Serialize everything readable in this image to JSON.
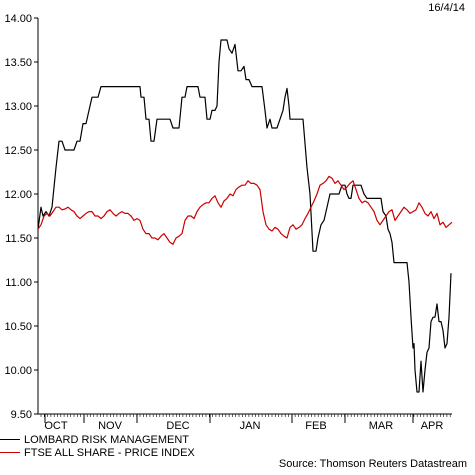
{
  "header": {
    "date": "16/4/14"
  },
  "footer": {
    "source": "Source: Thomson Reuters Datastream"
  },
  "chart_data": {
    "type": "line",
    "title": "",
    "xlabel": "",
    "ylabel": "",
    "ylim": [
      9.5,
      14.0
    ],
    "y_ticks": [
      "14.00",
      "13.50",
      "13.00",
      "12.50",
      "12.00",
      "11.50",
      "11.00",
      "10.50",
      "10.00",
      "9.50"
    ],
    "month_labels": [
      "OCT",
      "NOV",
      "DEC",
      "JAN",
      "FEB",
      "MAR",
      "APR"
    ],
    "month_label_x": [
      56,
      110,
      178,
      250,
      316,
      381,
      432
    ],
    "x_range": [
      38,
      452
    ],
    "grid": false,
    "legend_position": "bottom-left",
    "series": [
      {
        "name": "LOMBARD RISK MANAGEMENT",
        "color": "#000000",
        "points": [
          [
            38,
            11.6
          ],
          [
            41,
            11.85
          ],
          [
            43,
            11.75
          ],
          [
            46,
            11.8
          ],
          [
            49,
            11.75
          ],
          [
            52,
            11.85
          ],
          [
            56,
            12.3
          ],
          [
            59,
            12.6
          ],
          [
            62,
            12.6
          ],
          [
            65,
            12.5
          ],
          [
            68,
            12.5
          ],
          [
            71,
            12.5
          ],
          [
            74,
            12.5
          ],
          [
            77,
            12.6
          ],
          [
            80,
            12.6
          ],
          [
            83,
            12.8
          ],
          [
            86,
            12.8
          ],
          [
            89,
            12.95
          ],
          [
            92,
            13.1
          ],
          [
            95,
            13.1
          ],
          [
            98,
            13.1
          ],
          [
            101,
            13.22
          ],
          [
            104,
            13.22
          ],
          [
            110,
            13.22
          ],
          [
            120,
            13.22
          ],
          [
            130,
            13.22
          ],
          [
            140,
            13.22
          ],
          [
            141,
            13.1
          ],
          [
            144,
            13.1
          ],
          [
            146,
            12.85
          ],
          [
            149,
            12.85
          ],
          [
            151,
            12.6
          ],
          [
            154,
            12.6
          ],
          [
            157,
            12.85
          ],
          [
            162,
            12.85
          ],
          [
            167,
            12.85
          ],
          [
            170,
            12.85
          ],
          [
            173,
            12.75
          ],
          [
            176,
            12.75
          ],
          [
            179,
            12.75
          ],
          [
            182,
            13.1
          ],
          [
            185,
            13.1
          ],
          [
            187,
            13.22
          ],
          [
            190,
            13.22
          ],
          [
            195,
            13.22
          ],
          [
            198,
            13.22
          ],
          [
            200,
            13.1
          ],
          [
            203,
            13.1
          ],
          [
            205,
            13.1
          ],
          [
            207,
            12.85
          ],
          [
            210,
            12.85
          ],
          [
            212,
            12.95
          ],
          [
            215,
            12.95
          ],
          [
            217,
            13.0
          ],
          [
            219,
            13.5
          ],
          [
            221,
            13.75
          ],
          [
            224,
            13.75
          ],
          [
            227,
            13.75
          ],
          [
            229,
            13.65
          ],
          [
            232,
            13.6
          ],
          [
            235,
            13.7
          ],
          [
            238,
            13.4
          ],
          [
            241,
            13.4
          ],
          [
            244,
            13.45
          ],
          [
            246,
            13.3
          ],
          [
            249,
            13.3
          ],
          [
            252,
            13.22
          ],
          [
            255,
            13.22
          ],
          [
            258,
            13.22
          ],
          [
            262,
            13.22
          ],
          [
            265,
            12.95
          ],
          [
            267,
            12.75
          ],
          [
            270,
            12.85
          ],
          [
            272,
            12.75
          ],
          [
            275,
            12.75
          ],
          [
            277,
            12.75
          ],
          [
            280,
            12.85
          ],
          [
            283,
            12.95
          ],
          [
            285,
            13.1
          ],
          [
            287,
            13.2
          ],
          [
            289,
            13.0
          ],
          [
            290,
            12.85
          ],
          [
            293,
            12.85
          ],
          [
            296,
            12.85
          ],
          [
            299,
            12.85
          ],
          [
            303,
            12.85
          ],
          [
            307,
            12.3
          ],
          [
            310,
            12.0
          ],
          [
            313,
            11.35
          ],
          [
            316,
            11.35
          ],
          [
            318,
            11.5
          ],
          [
            321,
            11.65
          ],
          [
            324,
            11.7
          ],
          [
            327,
            11.85
          ],
          [
            330,
            12.0
          ],
          [
            333,
            12.0
          ],
          [
            336,
            12.0
          ],
          [
            339,
            12.0
          ],
          [
            342,
            12.1
          ],
          [
            345,
            12.1
          ],
          [
            347,
            12.0
          ],
          [
            349,
            11.95
          ],
          [
            351,
            11.95
          ],
          [
            353,
            12.1
          ],
          [
            356,
            12.1
          ],
          [
            358,
            12.1
          ],
          [
            361,
            12.1
          ],
          [
            364,
            12.0
          ],
          [
            367,
            11.95
          ],
          [
            370,
            11.95
          ],
          [
            373,
            11.95
          ],
          [
            376,
            11.95
          ],
          [
            379,
            11.95
          ],
          [
            381,
            11.95
          ],
          [
            383,
            11.8
          ],
          [
            386,
            11.75
          ],
          [
            388,
            11.6
          ],
          [
            390,
            11.55
          ],
          [
            392,
            11.45
          ],
          [
            394,
            11.22
          ],
          [
            397,
            11.22
          ],
          [
            400,
            11.22
          ],
          [
            404,
            11.22
          ],
          [
            407,
            11.22
          ],
          [
            409,
            11.0
          ],
          [
            411,
            10.6
          ],
          [
            413,
            10.25
          ],
          [
            414,
            10.3
          ],
          [
            415,
            10.0
          ],
          [
            417,
            9.75
          ],
          [
            419,
            9.75
          ],
          [
            421,
            10.1
          ],
          [
            423,
            9.75
          ],
          [
            425,
            10.0
          ],
          [
            427,
            10.2
          ],
          [
            429,
            10.25
          ],
          [
            431,
            10.55
          ],
          [
            433,
            10.6
          ],
          [
            435,
            10.6
          ],
          [
            437,
            10.75
          ],
          [
            439,
            10.55
          ],
          [
            441,
            10.55
          ],
          [
            443,
            10.45
          ],
          [
            445,
            10.25
          ],
          [
            447,
            10.3
          ],
          [
            449,
            10.6
          ],
          [
            451,
            11.1
          ]
        ]
      },
      {
        "name": "FTSE ALL SHARE - PRICE INDEX",
        "color": "#cc0000",
        "points": [
          [
            38,
            11.6
          ],
          [
            41,
            11.65
          ],
          [
            44,
            11.75
          ],
          [
            47,
            11.78
          ],
          [
            50,
            11.75
          ],
          [
            53,
            11.8
          ],
          [
            56,
            11.85
          ],
          [
            59,
            11.85
          ],
          [
            62,
            11.82
          ],
          [
            65,
            11.83
          ],
          [
            68,
            11.85
          ],
          [
            71,
            11.82
          ],
          [
            74,
            11.8
          ],
          [
            77,
            11.75
          ],
          [
            80,
            11.72
          ],
          [
            83,
            11.75
          ],
          [
            86,
            11.78
          ],
          [
            89,
            11.8
          ],
          [
            92,
            11.8
          ],
          [
            95,
            11.75
          ],
          [
            98,
            11.75
          ],
          [
            101,
            11.72
          ],
          [
            104,
            11.75
          ],
          [
            107,
            11.8
          ],
          [
            110,
            11.82
          ],
          [
            113,
            11.78
          ],
          [
            116,
            11.75
          ],
          [
            119,
            11.78
          ],
          [
            122,
            11.8
          ],
          [
            125,
            11.78
          ],
          [
            128,
            11.78
          ],
          [
            131,
            11.75
          ],
          [
            134,
            11.7
          ],
          [
            137,
            11.72
          ],
          [
            140,
            11.7
          ],
          [
            143,
            11.6
          ],
          [
            146,
            11.55
          ],
          [
            149,
            11.55
          ],
          [
            152,
            11.5
          ],
          [
            155,
            11.5
          ],
          [
            158,
            11.48
          ],
          [
            161,
            11.52
          ],
          [
            164,
            11.55
          ],
          [
            167,
            11.5
          ],
          [
            170,
            11.45
          ],
          [
            173,
            11.43
          ],
          [
            176,
            11.5
          ],
          [
            179,
            11.52
          ],
          [
            182,
            11.55
          ],
          [
            185,
            11.7
          ],
          [
            188,
            11.75
          ],
          [
            191,
            11.75
          ],
          [
            194,
            11.72
          ],
          [
            197,
            11.8
          ],
          [
            200,
            11.85
          ],
          [
            203,
            11.88
          ],
          [
            206,
            11.9
          ],
          [
            209,
            11.9
          ],
          [
            212,
            11.95
          ],
          [
            215,
            11.98
          ],
          [
            218,
            11.9
          ],
          [
            221,
            11.85
          ],
          [
            224,
            11.92
          ],
          [
            227,
            11.95
          ],
          [
            230,
            12.0
          ],
          [
            233,
            11.98
          ],
          [
            236,
            12.05
          ],
          [
            239,
            12.08
          ],
          [
            242,
            12.1
          ],
          [
            245,
            12.1
          ],
          [
            248,
            12.15
          ],
          [
            251,
            12.12
          ],
          [
            254,
            12.12
          ],
          [
            257,
            12.1
          ],
          [
            260,
            12.05
          ],
          [
            263,
            11.8
          ],
          [
            266,
            11.65
          ],
          [
            269,
            11.6
          ],
          [
            272,
            11.58
          ],
          [
            275,
            11.62
          ],
          [
            278,
            11.6
          ],
          [
            281,
            11.55
          ],
          [
            284,
            11.52
          ],
          [
            287,
            11.5
          ],
          [
            290,
            11.62
          ],
          [
            293,
            11.65
          ],
          [
            296,
            11.6
          ],
          [
            299,
            11.62
          ],
          [
            302,
            11.65
          ],
          [
            305,
            11.72
          ],
          [
            308,
            11.78
          ],
          [
            311,
            11.85
          ],
          [
            314,
            11.92
          ],
          [
            317,
            12.0
          ],
          [
            320,
            12.1
          ],
          [
            323,
            12.12
          ],
          [
            326,
            12.15
          ],
          [
            329,
            12.2
          ],
          [
            332,
            12.18
          ],
          [
            335,
            12.12
          ],
          [
            338,
            12.15
          ],
          [
            341,
            12.1
          ],
          [
            344,
            12.05
          ],
          [
            347,
            12.08
          ],
          [
            350,
            12.12
          ],
          [
            353,
            12.15
          ],
          [
            356,
            12.05
          ],
          [
            359,
            11.95
          ],
          [
            362,
            11.9
          ],
          [
            365,
            11.92
          ],
          [
            368,
            11.9
          ],
          [
            371,
            11.85
          ],
          [
            374,
            11.8
          ],
          [
            377,
            11.7
          ],
          [
            380,
            11.65
          ],
          [
            383,
            11.7
          ],
          [
            386,
            11.75
          ],
          [
            389,
            11.8
          ],
          [
            392,
            11.82
          ],
          [
            395,
            11.7
          ],
          [
            398,
            11.75
          ],
          [
            401,
            11.8
          ],
          [
            404,
            11.85
          ],
          [
            407,
            11.82
          ],
          [
            410,
            11.78
          ],
          [
            413,
            11.8
          ],
          [
            416,
            11.82
          ],
          [
            419,
            11.9
          ],
          [
            422,
            11.85
          ],
          [
            425,
            11.78
          ],
          [
            428,
            11.75
          ],
          [
            431,
            11.8
          ],
          [
            434,
            11.72
          ],
          [
            437,
            11.78
          ],
          [
            440,
            11.65
          ],
          [
            443,
            11.68
          ],
          [
            446,
            11.62
          ],
          [
            449,
            11.65
          ],
          [
            452,
            11.68
          ]
        ]
      }
    ]
  }
}
